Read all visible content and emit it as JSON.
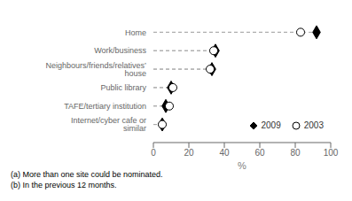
{
  "chart_data": {
    "type": "scatter",
    "orientation": "horizontal",
    "categories": [
      "Home",
      "Work/business",
      "Neighbours/friends/relatives’ house",
      "Public library",
      "TAFE/tertiary institution",
      "Internet/cyber cafe or similar"
    ],
    "series": [
      {
        "name": "2009",
        "color": "#000000",
        "marker": "diamond",
        "values": [
          92,
          35,
          33,
          10,
          7,
          5
        ]
      },
      {
        "name": "2003",
        "color": "#000000",
        "marker": "circle_open",
        "values": [
          83,
          34,
          32,
          11,
          9,
          5
        ]
      }
    ],
    "xlabel": "%",
    "xlim": [
      0,
      100
    ],
    "xticks": [
      0,
      20,
      40,
      60,
      80,
      100
    ],
    "line_style": "dashed",
    "legend": "lower right",
    "annotations": [
      "(a) More than one site could be nominated.",
      "(b) In the previous 12 months."
    ]
  }
}
